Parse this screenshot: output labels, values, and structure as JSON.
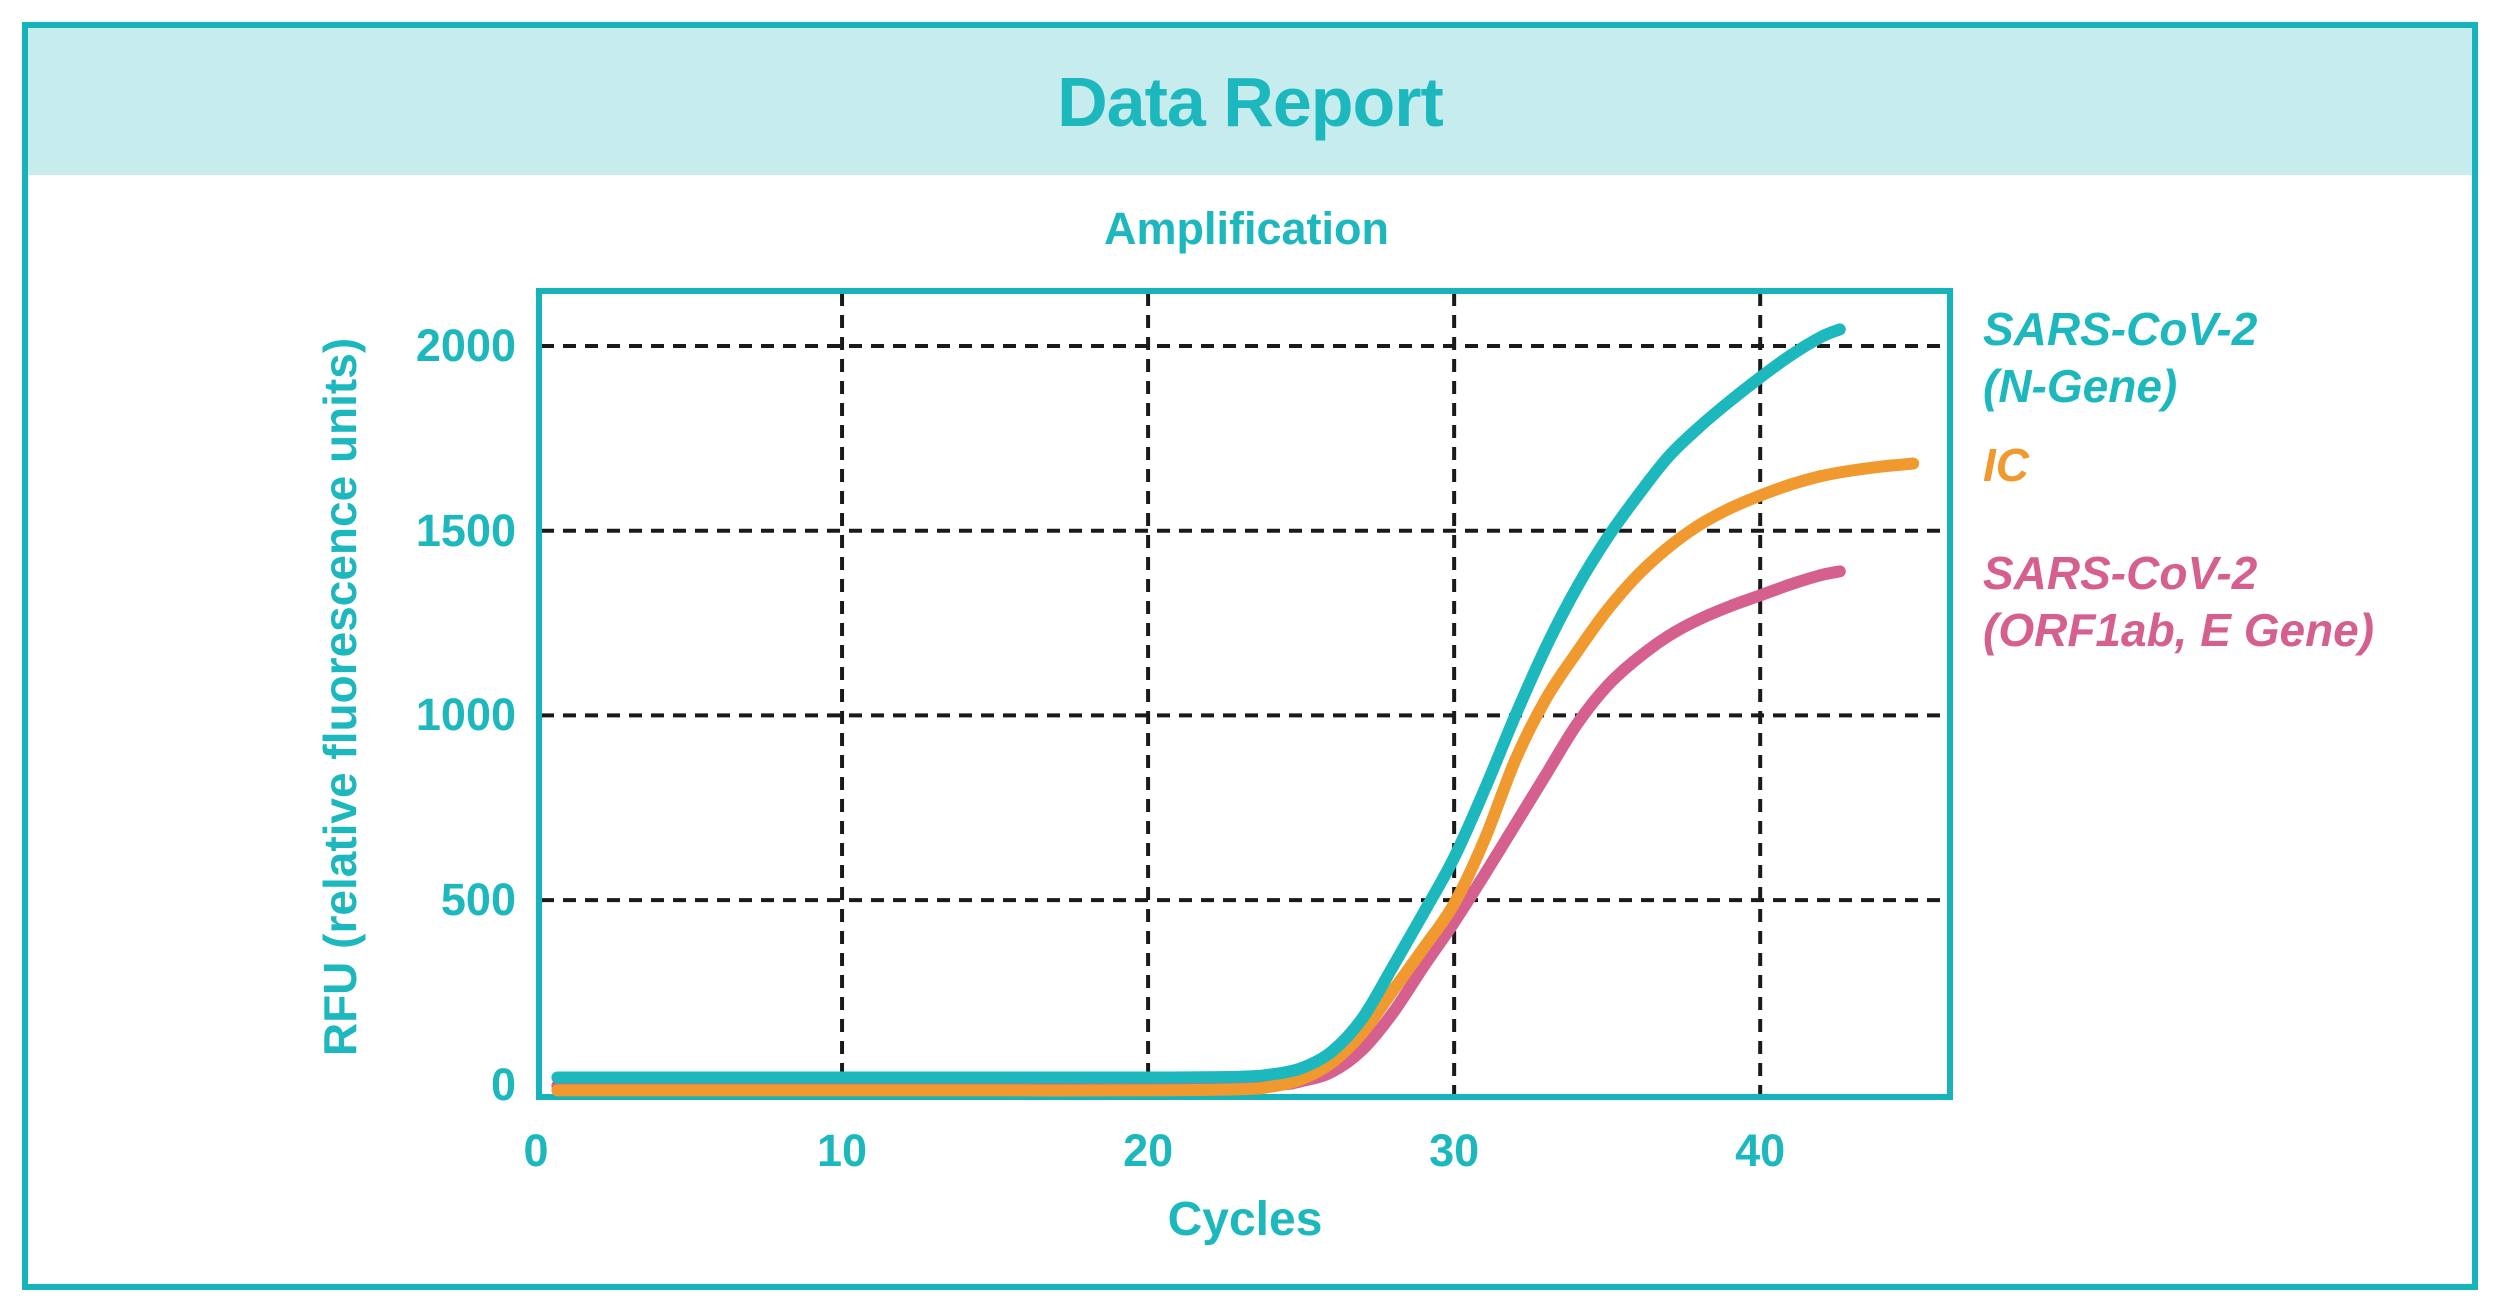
{
  "report": {
    "title": "Data Report"
  },
  "colors": {
    "teal": "#1CB8BD",
    "border": "#17B3BB",
    "header_bg": "#C6ECEE",
    "orange": "#F0992F",
    "pink": "#D5608F",
    "grid": "#1A1A1A",
    "background": "#FFFFFF"
  },
  "chart_data": {
    "type": "line",
    "title": "Amplification",
    "xlabel": "Cycles",
    "ylabel": "RFU (relative fluorescence units)",
    "xlim": [
      0,
      46.3
    ],
    "ylim": [
      -41,
      2157
    ],
    "x_ticks": [
      0,
      10,
      20,
      30,
      40
    ],
    "y_ticks": [
      0,
      500,
      1000,
      1500,
      2000
    ],
    "grid": {
      "x": [
        10,
        20,
        30,
        40
      ],
      "y": [
        500,
        1000,
        1500,
        2000
      ],
      "line_style": "dashed",
      "color": "#1A1A1A"
    },
    "legend_position": "right-outside",
    "series": [
      {
        "name": "SARS-CoV-2 (N-Gene)",
        "label_lines": [
          "SARS-CoV-2",
          "(N-Gene)"
        ],
        "color": "#1CB8BD",
        "points": [
          [
            0.7,
            20
          ],
          [
            5,
            20
          ],
          [
            10,
            20
          ],
          [
            15,
            20
          ],
          [
            20,
            20
          ],
          [
            23,
            22
          ],
          [
            24,
            28
          ],
          [
            25,
            45
          ],
          [
            26,
            90
          ],
          [
            27,
            180
          ],
          [
            28,
            320
          ],
          [
            29,
            465
          ],
          [
            30,
            615
          ],
          [
            31,
            800
          ],
          [
            32,
            1000
          ],
          [
            33,
            1185
          ],
          [
            34,
            1345
          ],
          [
            35,
            1480
          ],
          [
            36,
            1595
          ],
          [
            37,
            1700
          ],
          [
            38,
            1780
          ],
          [
            39,
            1850
          ],
          [
            40,
            1915
          ],
          [
            41,
            1975
          ],
          [
            42,
            2025
          ],
          [
            42.6,
            2045
          ]
        ]
      },
      {
        "name": "IC",
        "label_lines": [
          "IC"
        ],
        "color": "#F0992F",
        "points": [
          [
            0.7,
            -15
          ],
          [
            5,
            -15
          ],
          [
            10,
            -15
          ],
          [
            15,
            -15
          ],
          [
            20,
            -15
          ],
          [
            23,
            -12
          ],
          [
            24,
            -5
          ],
          [
            25,
            15
          ],
          [
            26,
            60
          ],
          [
            27,
            140
          ],
          [
            28,
            255
          ],
          [
            29,
            370
          ],
          [
            30,
            490
          ],
          [
            31,
            665
          ],
          [
            32,
            880
          ],
          [
            33,
            1045
          ],
          [
            34,
            1170
          ],
          [
            35,
            1285
          ],
          [
            36,
            1380
          ],
          [
            37,
            1455
          ],
          [
            38,
            1515
          ],
          [
            39,
            1560
          ],
          [
            40,
            1595
          ],
          [
            41,
            1625
          ],
          [
            42,
            1648
          ],
          [
            43,
            1663
          ],
          [
            44,
            1674
          ],
          [
            45,
            1682
          ]
        ]
      },
      {
        "name": "SARS-CoV-2 (ORF1ab, E Gene)",
        "label_lines": [
          "SARS-CoV-2",
          "(ORF1ab, E Gene)"
        ],
        "color": "#D5608F",
        "points": [
          [
            0.7,
            -2
          ],
          [
            5,
            -2
          ],
          [
            10,
            -2
          ],
          [
            15,
            -2
          ],
          [
            20,
            -2
          ],
          [
            24,
            0
          ],
          [
            25,
            10
          ],
          [
            26,
            35
          ],
          [
            27,
            95
          ],
          [
            28,
            195
          ],
          [
            29,
            320
          ],
          [
            30,
            440
          ],
          [
            31,
            570
          ],
          [
            32,
            705
          ],
          [
            33,
            840
          ],
          [
            34,
            975
          ],
          [
            35,
            1080
          ],
          [
            36,
            1155
          ],
          [
            37,
            1215
          ],
          [
            38,
            1260
          ],
          [
            39,
            1295
          ],
          [
            40,
            1325
          ],
          [
            41,
            1355
          ],
          [
            42,
            1380
          ],
          [
            42.6,
            1390
          ]
        ]
      }
    ]
  }
}
